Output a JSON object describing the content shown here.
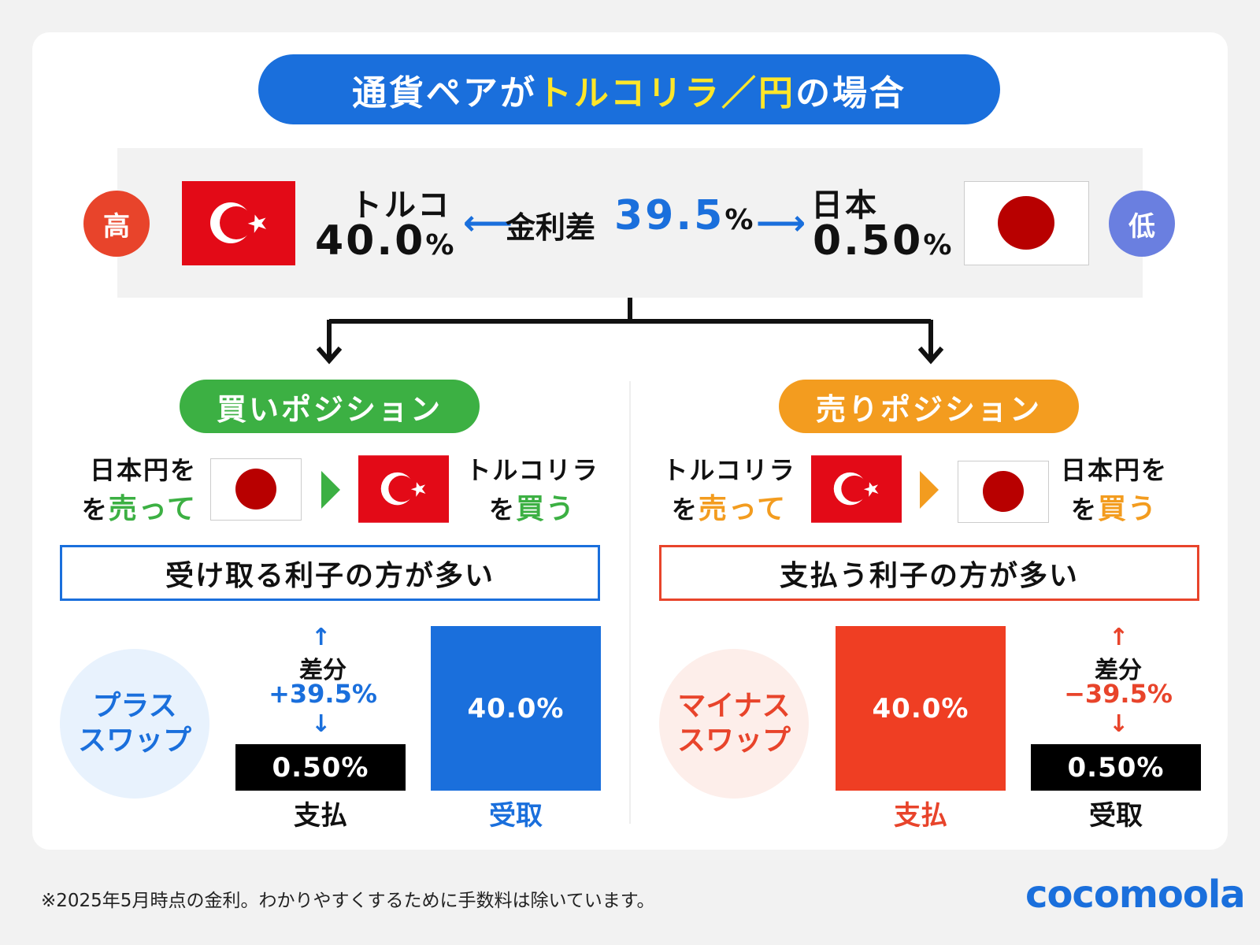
{
  "title": {
    "part1": "通貨ペアが",
    "highlight": "トルコリラ／円",
    "part2": "の場合"
  },
  "top": {
    "high_badge": "高",
    "low_badge": "低",
    "turkey": {
      "name": "トルコ",
      "rate": "40.0",
      "unit": "%"
    },
    "japan": {
      "name": "日本",
      "rate": "0.50",
      "unit": "%"
    },
    "diff_label": "金利差",
    "diff_value": "39.5",
    "diff_unit": "%"
  },
  "buy": {
    "label": "買いポジション",
    "from_line1": "日本円を",
    "from_line2a": "を",
    "from_line2b": "売って",
    "to_line1": "トルコリラ",
    "to_line2a": "を",
    "to_line2b": "買う",
    "summary": "受け取る利子の方が多い",
    "swap": "プラス\nスワップ",
    "diff_label": "差分",
    "diff_value": "+39.5%",
    "pay_value": "0.50%",
    "pay_label": "支払",
    "receive_value": "40.0%",
    "receive_label": "受取"
  },
  "sell": {
    "label": "売りポジション",
    "from_line1": "トルコリラ",
    "from_line2a": "を",
    "from_line2b": "売って",
    "to_line1": "日本円を",
    "to_line2a": "を",
    "to_line2b": "買う",
    "summary": "支払う利子の方が多い",
    "swap": "マイナス\nスワップ",
    "diff_label": "差分",
    "diff_value": "−39.5%",
    "pay_value": "40.0%",
    "pay_label": "支払",
    "receive_value": "0.50%",
    "receive_label": "受取"
  },
  "footnote": "※2025年5月時点の金利。わかりやすくするために手数料は除いています。",
  "logo": "cocomoola",
  "colors": {
    "blue": "#1a6fdc",
    "yellow": "#ffe629",
    "green": "#3cb043",
    "orange": "#f39c1f",
    "red": "#e8442b",
    "indigo": "#6a7fe0",
    "flag_red": "#e30a17",
    "sun_red": "#b80000"
  }
}
